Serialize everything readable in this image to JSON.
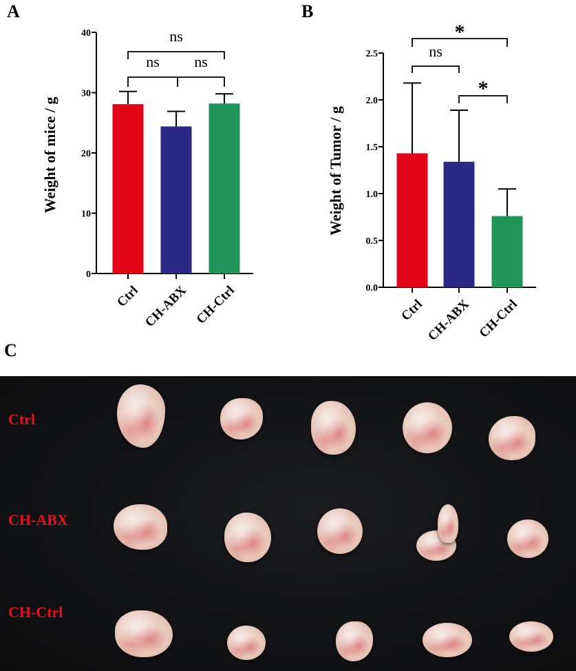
{
  "panels": {
    "a": "A",
    "b": "B",
    "c": "C"
  },
  "chart_data": [
    {
      "type": "bar",
      "categories": [
        "Ctrl",
        "CH-ABX",
        "CH-Ctrl"
      ],
      "values": [
        28.1,
        24.4,
        28.2
      ],
      "errors": [
        2.1,
        2.5,
        1.6
      ],
      "colors": [
        "#e3061a",
        "#2a2a86",
        "#21955a"
      ],
      "ylabel": "Weight of mice / g",
      "xlabel": "",
      "ylim": [
        0,
        40
      ],
      "yticks": [
        0,
        10,
        20,
        30,
        40
      ],
      "grid": false,
      "comparisons": [
        {
          "from": 0,
          "to": 1,
          "label": "ns"
        },
        {
          "from": 1,
          "to": 2,
          "label": "ns"
        },
        {
          "from": 0,
          "to": 2,
          "label": "ns"
        }
      ]
    },
    {
      "type": "bar",
      "categories": [
        "Ctrl",
        "CH-ABX",
        "CH-Ctrl"
      ],
      "values": [
        1.43,
        1.34,
        0.76
      ],
      "errors": [
        0.75,
        0.55,
        0.29
      ],
      "colors": [
        "#e3061a",
        "#2a2a86",
        "#21955a"
      ],
      "ylabel": "Weight of Tumor / g",
      "xlabel": "",
      "ylim": [
        0,
        2.5
      ],
      "yticks": [
        "0.0",
        "0.5",
        "1.0",
        "1.5",
        "2.0",
        "2.5"
      ],
      "grid": false,
      "comparisons": [
        {
          "from": 0,
          "to": 1,
          "label": "ns"
        },
        {
          "from": 1,
          "to": 2,
          "label": "*"
        },
        {
          "from": 0,
          "to": 2,
          "label": "*"
        }
      ]
    }
  ],
  "photo": {
    "rows": [
      "Ctrl",
      "CH-ABX",
      "CH-Ctrl"
    ],
    "label_color": "#e0141e",
    "background": "#151618"
  }
}
